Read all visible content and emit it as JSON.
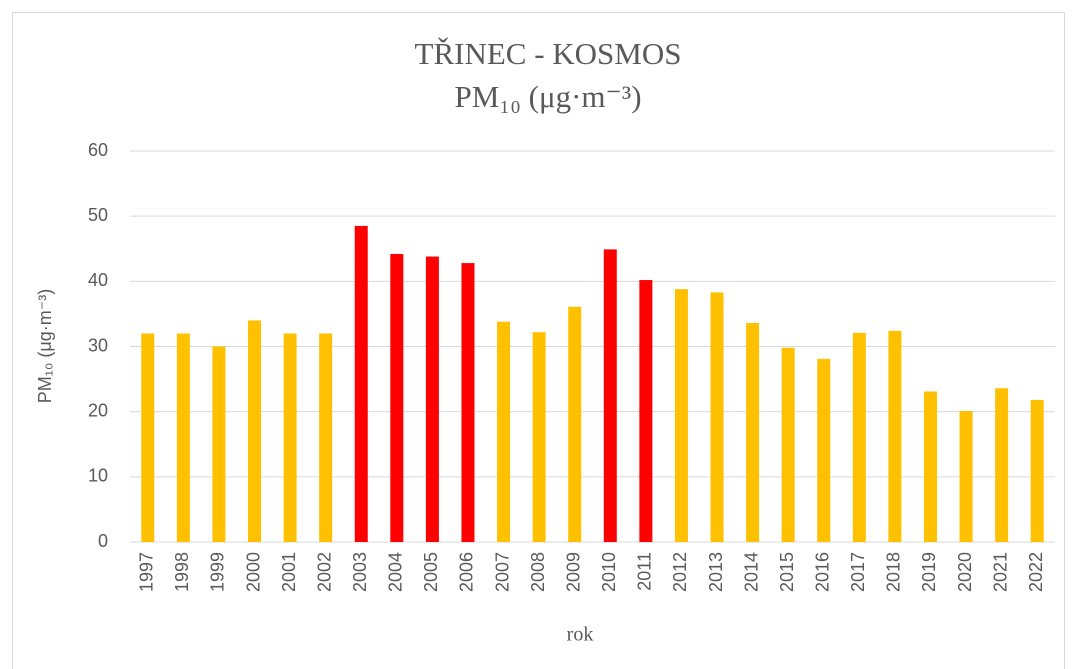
{
  "chart_data": {
    "type": "bar",
    "title": "TŘINEC - KOSMOS",
    "subtitle": "PM₁₀ (μg·m⁻³)",
    "y_label": "PM₁₀ (μg·m⁻³)",
    "x_label": "rok",
    "categories": [
      "1997",
      "1998",
      "1999",
      "2000",
      "2001",
      "2002",
      "2003",
      "2004",
      "2005",
      "2006",
      "2007",
      "2008",
      "2009",
      "2010",
      "2011",
      "2012",
      "2013",
      "2014",
      "2015",
      "2016",
      "2017",
      "2018",
      "2019",
      "2020",
      "2021",
      "2022"
    ],
    "values": [
      32,
      32,
      30,
      34,
      32,
      32,
      48.5,
      44.2,
      43.8,
      42.8,
      33.8,
      32.2,
      36.1,
      44.9,
      40.2,
      38.8,
      38.3,
      33.6,
      29.8,
      28.1,
      32.1,
      32.4,
      23.1,
      20.1,
      23.6,
      21.8
    ],
    "colors": [
      "#ffc000",
      "#ffc000",
      "#ffc000",
      "#ffc000",
      "#ffc000",
      "#ffc000",
      "#ff0000",
      "#ff0000",
      "#ff0000",
      "#ff0000",
      "#ffc000",
      "#ffc000",
      "#ffc000",
      "#ff0000",
      "#ff0000",
      "#ffc000",
      "#ffc000",
      "#ffc000",
      "#ffc000",
      "#ffc000",
      "#ffc000",
      "#ffc000",
      "#ffc000",
      "#ffc000",
      "#ffc000",
      "#ffc000"
    ],
    "ylim": [
      0,
      60
    ],
    "yticks": [
      0,
      10,
      20,
      30,
      40,
      50,
      60
    ],
    "grid": true
  }
}
